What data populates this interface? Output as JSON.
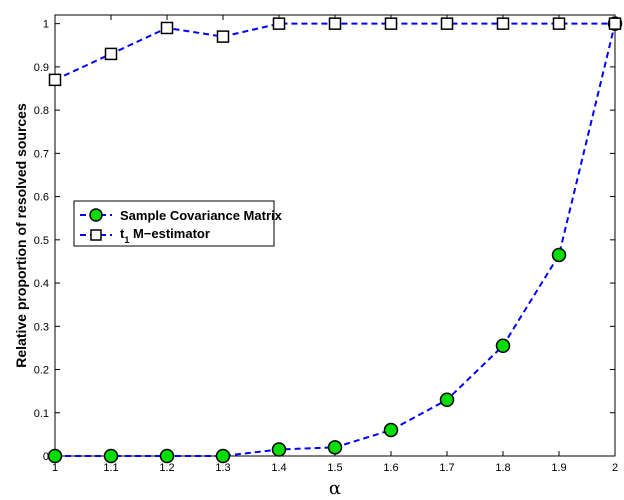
{
  "chart_data": {
    "type": "line",
    "xlabel": "α",
    "ylabel": "Relative proportion of resolved sources",
    "xlim": [
      1,
      2
    ],
    "ylim": [
      0,
      1.02
    ],
    "x_ticks": [
      "1",
      "1.1",
      "1.2",
      "1.3",
      "1.4",
      "1.5",
      "1.6",
      "1.7",
      "1.8",
      "1.9",
      "2"
    ],
    "y_ticks": [
      "0",
      "0.1",
      "0.2",
      "0.3",
      "0.4",
      "0.5",
      "0.6",
      "0.7",
      "0.8",
      "0.9",
      "1"
    ],
    "grid": false,
    "legend_position": "middle-left",
    "x": [
      1.0,
      1.1,
      1.2,
      1.3,
      1.4,
      1.5,
      1.6,
      1.7,
      1.8,
      1.9,
      2.0
    ],
    "series": [
      {
        "name": "Sample Covariance Matrix",
        "marker": "circle",
        "line_color": "#0000ff",
        "marker_fill": "#00dd00",
        "values": [
          0.0,
          0.0,
          0.0,
          0.0,
          0.015,
          0.02,
          0.06,
          0.13,
          0.255,
          0.465,
          1.0
        ]
      },
      {
        "name": "t",
        "name_subscript": "1",
        "name_suffix": " M−estimator",
        "marker": "square",
        "line_color": "#0000ff",
        "marker_fill": "#ffffff",
        "values": [
          0.87,
          0.93,
          0.99,
          0.97,
          1.0,
          1.0,
          1.0,
          1.0,
          1.0,
          1.0,
          1.0
        ]
      }
    ]
  }
}
